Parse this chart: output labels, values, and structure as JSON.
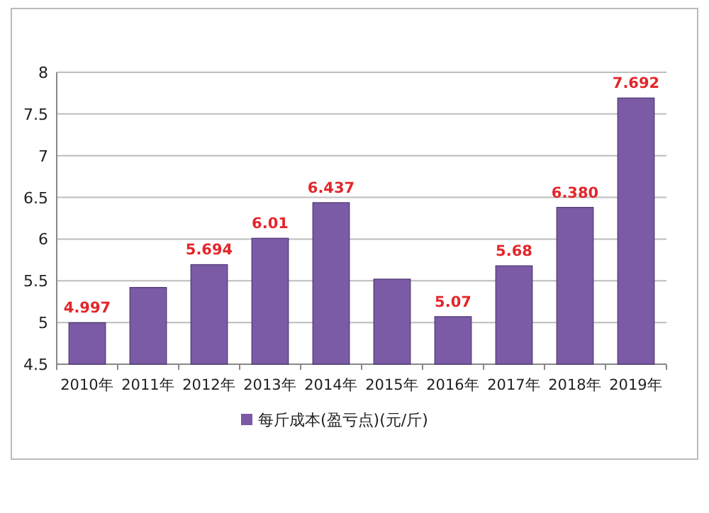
{
  "chart_data": {
    "type": "bar",
    "categories": [
      "2010年",
      "2011年",
      "2012年",
      "2013年",
      "2014年",
      "2015年",
      "2016年",
      "2017年",
      "2018年",
      "2019年"
    ],
    "series": [
      {
        "name": "每斤成本(盈亏点)(元/斤)",
        "color": "#7b5aa6",
        "values": [
          4.997,
          5.42,
          5.694,
          6.01,
          6.437,
          5.52,
          5.07,
          5.68,
          6.38,
          7.692
        ],
        "value_labels": [
          "4.997",
          null,
          "5.694",
          "6.01",
          "6.437",
          null,
          "5.07",
          "5.68",
          "6.380",
          "7.692"
        ]
      }
    ],
    "ylim": [
      4.5,
      8
    ],
    "yticks": [
      {
        "value": 4.5,
        "label": "4.5"
      },
      5,
      {
        "value": 5.5,
        "label": "5.5"
      },
      6,
      {
        "value": 6.5,
        "label": "6.5"
      },
      7,
      {
        "value": 7.5,
        "label": "7.5"
      },
      8
    ],
    "grid": "y",
    "legend": "bottom"
  }
}
